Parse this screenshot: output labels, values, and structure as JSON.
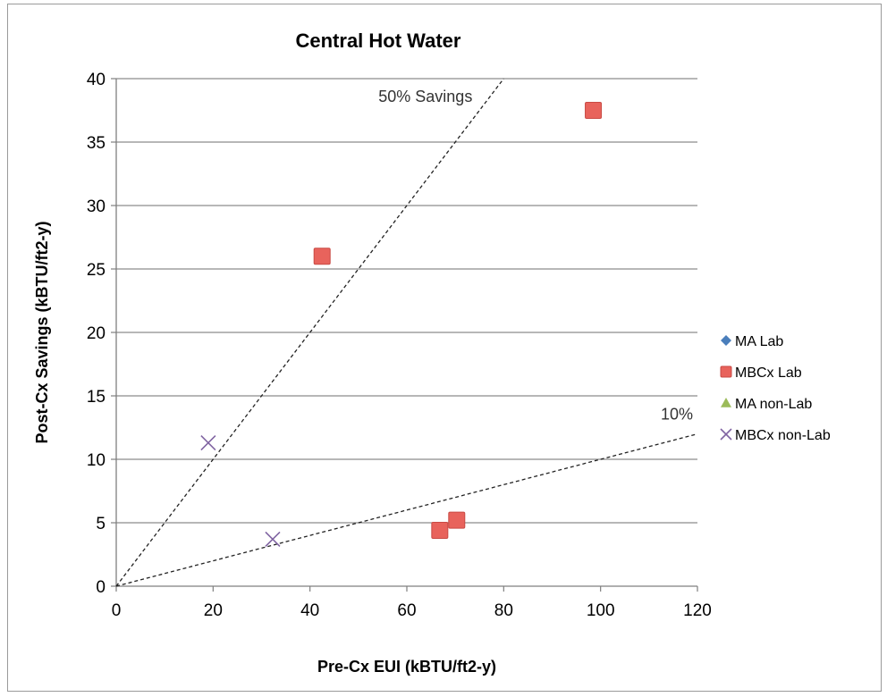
{
  "chart_data": {
    "type": "scatter",
    "title": "Central Hot Water",
    "xlabel": "Pre-Cx EUI (kBTU/ft2-y)",
    "ylabel": "Post-Cx Savings (kBTU/ft2-y)",
    "xlim": [
      0,
      120
    ],
    "ylim": [
      0,
      40
    ],
    "x_ticks": [
      "0",
      "20",
      "40",
      "60",
      "80",
      "100",
      "120"
    ],
    "y_ticks": [
      "0",
      "5",
      "10",
      "15",
      "20",
      "25",
      "30",
      "35",
      "40"
    ],
    "grid": "horizontal",
    "legend_position": "right",
    "series": [
      {
        "name": "MA Lab",
        "marker": "diamond",
        "color": "#4a7ebb",
        "points": []
      },
      {
        "name": "MBCx Lab",
        "marker": "square",
        "color": "#e8635c",
        "points": [
          [
            42.5,
            26.0
          ],
          [
            98.5,
            37.5
          ],
          [
            66.8,
            4.4
          ],
          [
            70.3,
            5.2
          ]
        ]
      },
      {
        "name": "MA non-Lab",
        "marker": "triangle",
        "color": "#9bbb59",
        "points": []
      },
      {
        "name": "MBCx non-Lab",
        "marker": "x",
        "color": "#8064a2",
        "points": [
          [
            19.0,
            11.3
          ],
          [
            32.3,
            3.7
          ]
        ]
      }
    ],
    "reference_lines": [
      {
        "label": "50% Savings",
        "slope": 0.5
      },
      {
        "label": "10%",
        "slope": 0.1
      }
    ]
  }
}
